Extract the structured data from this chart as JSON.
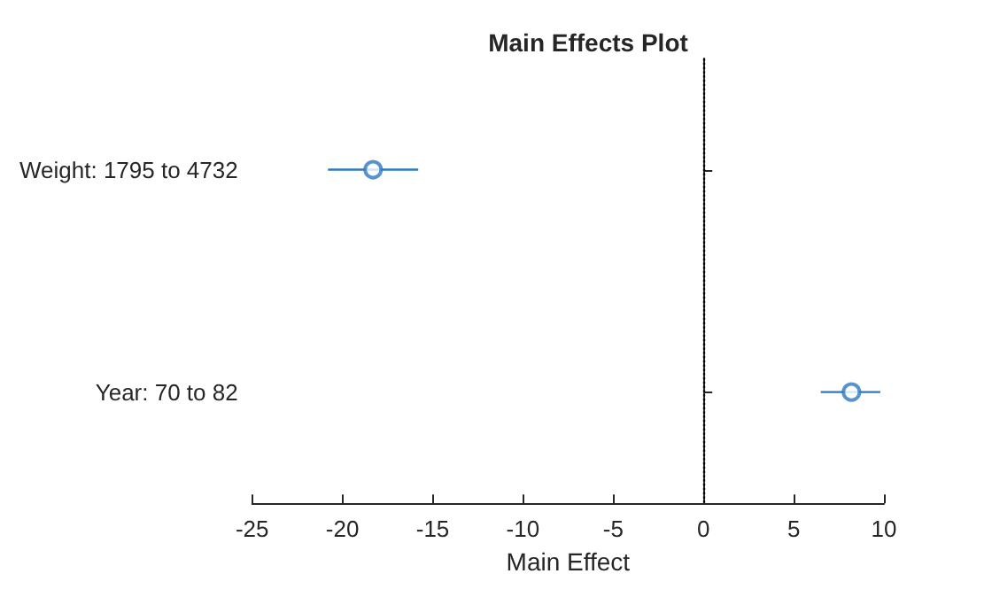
{
  "chart_data": {
    "type": "scatter",
    "title": "Main Effects Plot",
    "xlabel": "Main Effect",
    "orientation": "horizontal",
    "categories": [
      "Weight: 1795 to 4732",
      "Year: 70 to 82"
    ],
    "values": [
      -18.3,
      8.2
    ],
    "errors": [
      [
        -20.8,
        -15.8
      ],
      [
        6.5,
        9.8
      ]
    ],
    "color": "#2e78c2",
    "marker": "circle",
    "grid": false,
    "xlim": [
      -25,
      10
    ],
    "xticks": [
      -25,
      -20,
      -15,
      -10,
      -5,
      0,
      5,
      10
    ],
    "ref_lines": [
      {
        "axis": "x",
        "value": 0,
        "color": "#000000",
        "line_style": "dotted"
      }
    ]
  }
}
